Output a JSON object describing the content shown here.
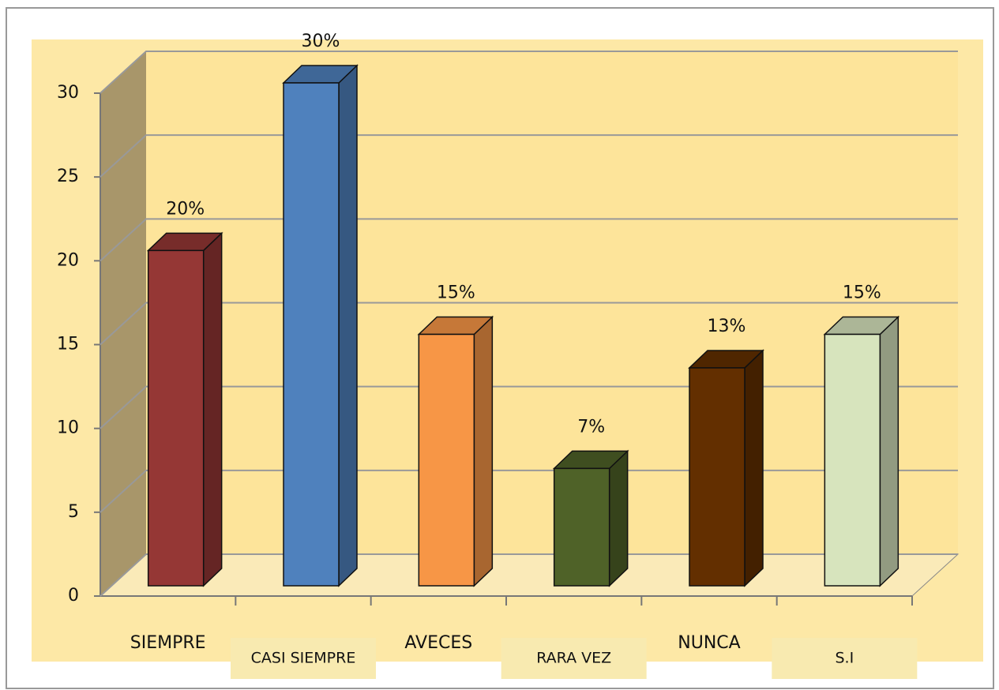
{
  "chart_data": {
    "type": "bar3d",
    "categories": [
      "SIEMPRE",
      "CASI SIEMPRE",
      "AVECES",
      "RARA VEZ",
      "NUNCA",
      "S.I"
    ],
    "values": [
      20,
      30,
      15,
      7,
      13,
      15
    ],
    "value_labels": [
      "20%",
      "30%",
      "15%",
      "7%",
      "13%",
      "15%"
    ],
    "colors": [
      "#953735",
      "#4f81bd",
      "#f79646",
      "#4f6228",
      "#632f00",
      "#d7e4bd"
    ],
    "ylim": [
      0,
      30
    ],
    "yticks": [
      0,
      5,
      10,
      15,
      20,
      25,
      30
    ],
    "grid": true
  }
}
